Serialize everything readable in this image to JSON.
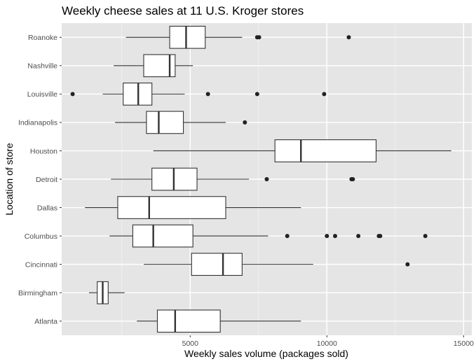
{
  "chart_data": {
    "type": "boxplot",
    "title": "Weekly cheese sales at 11 U.S. Kroger stores",
    "xlabel": "Weekly sales volume (packages sold)",
    "ylabel": "Location of store",
    "orientation": "horizontal",
    "xlim": [
      0,
      15000
    ],
    "x_ticks": [
      5000,
      10000,
      15000
    ],
    "x_tick_labels": [
      "5000",
      "10000",
      "15000"
    ],
    "grid": true,
    "colors": {
      "panel": "#e5e5e5",
      "grid": "#ffffff",
      "box_fill": "#ffffff",
      "box_line": "#333333",
      "outlier": "#222222"
    },
    "categories": [
      "Roanoke",
      "Nashville",
      "Louisville",
      "Indianapolis",
      "Houston",
      "Detroit",
      "Dallas",
      "Columbus",
      "Cincinnati",
      "Birmingham",
      "Atlanta"
    ],
    "boxes": [
      {
        "store": "Roanoke",
        "whisker_low": 2650,
        "q1": 4250,
        "median": 4850,
        "q3": 5550,
        "whisker_high": 6900,
        "outliers": [
          7450,
          7520,
          10800
        ]
      },
      {
        "store": "Nashville",
        "whisker_low": 2200,
        "q1": 3300,
        "median": 4250,
        "q3": 4450,
        "whisker_high": 5100,
        "outliers": []
      },
      {
        "store": "Louisville",
        "whisker_low": 1800,
        "q1": 2550,
        "median": 3100,
        "q3": 3600,
        "whisker_high": 4800,
        "outliers": [
          700,
          5650,
          7450,
          9900
        ]
      },
      {
        "store": "Indianapolis",
        "whisker_low": 2250,
        "q1": 3400,
        "median": 3850,
        "q3": 4750,
        "whisker_high": 6300,
        "outliers": [
          7000
        ]
      },
      {
        "store": "Houston",
        "whisker_low": 3650,
        "q1": 8100,
        "median": 9050,
        "q3": 11800,
        "whisker_high": 14550,
        "outliers": []
      },
      {
        "store": "Detroit",
        "whisker_low": 2100,
        "q1": 3600,
        "median": 4400,
        "q3": 5250,
        "whisker_high": 7150,
        "outliers": [
          7800,
          10900,
          10950
        ]
      },
      {
        "store": "Dallas",
        "whisker_low": 1150,
        "q1": 2350,
        "median": 3500,
        "q3": 6300,
        "whisker_high": 9050,
        "outliers": []
      },
      {
        "store": "Columbus",
        "whisker_low": 2050,
        "q1": 2900,
        "median": 3650,
        "q3": 5100,
        "whisker_high": 7850,
        "outliers": [
          8550,
          10000,
          10300,
          11150,
          11900,
          11950,
          13600
        ]
      },
      {
        "store": "Cincinnati",
        "whisker_low": 3300,
        "q1": 5050,
        "median": 6200,
        "q3": 6900,
        "whisker_high": 9500,
        "outliers": [
          12950
        ]
      },
      {
        "store": "Birmingham",
        "whisker_low": 1300,
        "q1": 1600,
        "median": 1800,
        "q3": 2000,
        "whisker_high": 2600,
        "outliers": []
      },
      {
        "store": "Atlanta",
        "whisker_low": 3050,
        "q1": 3800,
        "median": 4450,
        "q3": 6100,
        "whisker_high": 9050,
        "outliers": []
      }
    ]
  }
}
